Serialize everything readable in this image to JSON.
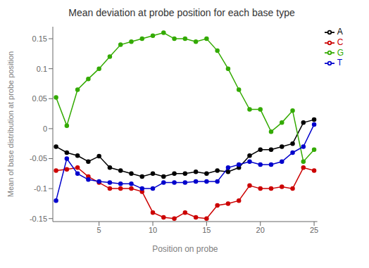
{
  "chart_data": {
    "type": "line",
    "title": "Mean deviation at probe position for each base type",
    "xlabel": "Position on probe",
    "ylabel": "Mean of base distribution at probe position",
    "x": [
      1,
      2,
      3,
      4,
      5,
      6,
      7,
      8,
      9,
      10,
      11,
      12,
      13,
      14,
      15,
      16,
      17,
      18,
      19,
      20,
      21,
      22,
      23,
      24,
      25
    ],
    "series": [
      {
        "name": "A",
        "color": "#000000",
        "values": [
          -0.03,
          -0.04,
          -0.045,
          -0.055,
          -0.046,
          -0.065,
          -0.07,
          -0.075,
          -0.08,
          -0.075,
          -0.08,
          -0.075,
          -0.075,
          -0.072,
          -0.075,
          -0.07,
          -0.072,
          -0.065,
          -0.045,
          -0.035,
          -0.035,
          -0.03,
          -0.025,
          0.01,
          0.015
        ]
      },
      {
        "name": "C",
        "color": "#cc0000",
        "values": [
          -0.07,
          -0.068,
          -0.065,
          -0.08,
          -0.09,
          -0.1,
          -0.1,
          -0.1,
          -0.105,
          -0.14,
          -0.148,
          -0.15,
          -0.14,
          -0.148,
          -0.15,
          -0.128,
          -0.125,
          -0.12,
          -0.095,
          -0.1,
          -0.1,
          -0.097,
          -0.1,
          -0.065,
          -0.07
        ]
      },
      {
        "name": "G",
        "color": "#33aa00",
        "values": [
          0.052,
          0.005,
          0.065,
          0.083,
          0.1,
          0.12,
          0.14,
          0.145,
          0.15,
          0.155,
          0.16,
          0.15,
          0.15,
          0.145,
          0.15,
          0.13,
          0.1,
          0.065,
          0.032,
          0.032,
          -0.005,
          0.01,
          0.03,
          -0.055,
          -0.035
        ]
      },
      {
        "name": "T",
        "color": "#0000cc",
        "values": [
          -0.12,
          -0.05,
          -0.075,
          -0.085,
          -0.088,
          -0.09,
          -0.092,
          -0.092,
          -0.1,
          -0.1,
          -0.09,
          -0.09,
          -0.09,
          -0.088,
          -0.088,
          -0.088,
          -0.065,
          -0.06,
          -0.055,
          -0.06,
          -0.06,
          -0.055,
          -0.04,
          -0.03,
          0.007
        ]
      }
    ],
    "xlim": [
      0.7,
      25.3
    ],
    "xticks": [
      5,
      10,
      15,
      20,
      25
    ],
    "ylim": [
      -0.155,
      0.17
    ],
    "yticks": [
      -0.15,
      -0.1,
      -0.05,
      0,
      0.05,
      0.1,
      0.15
    ],
    "grid": false,
    "legend": "upper right",
    "marker": "circle"
  }
}
